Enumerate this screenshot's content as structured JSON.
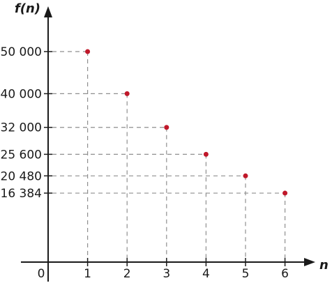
{
  "chart_data": {
    "type": "scatter",
    "x": [
      1,
      2,
      3,
      4,
      5,
      6
    ],
    "y": [
      50000,
      40000,
      32000,
      25600,
      20480,
      16384
    ],
    "xlabel": "n",
    "ylabel": "f(n)",
    "origin_label": "0",
    "x_tick_labels": [
      "1",
      "2",
      "3",
      "4",
      "5",
      "6"
    ],
    "y_tick_labels": [
      "50 000",
      "40 000",
      "32 000",
      "25 600",
      "20 480",
      "16 384"
    ],
    "xlim": [
      0,
      6.5
    ],
    "ylim": [
      0,
      60000
    ],
    "grid": false,
    "guide_lines": "dashed",
    "colors": {
      "point": "#c0182a",
      "axis": "#1a1a1a",
      "guide": "#8f8f8f"
    }
  }
}
